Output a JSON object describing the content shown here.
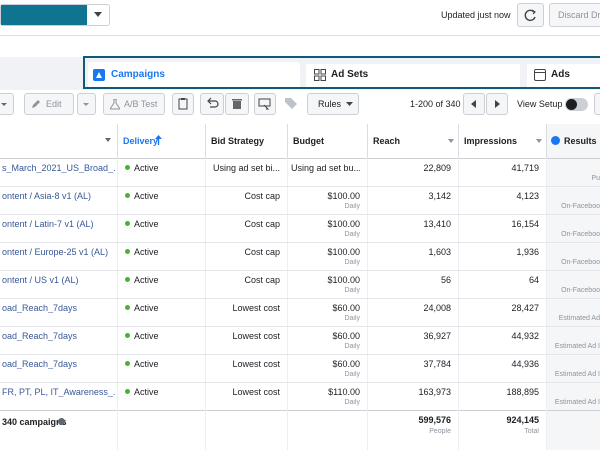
{
  "top_bar": {
    "status": "Updated just now",
    "discard": "Discard Dra"
  },
  "tabs": [
    "Campaigns",
    "Ad Sets",
    "Ads"
  ],
  "toolbar": {
    "edit": "Edit",
    "ab_test": "A/B Test",
    "rules": "Rules",
    "pagination": "1-200 of 340",
    "view_setup": "View Setup"
  },
  "table": {
    "headers": [
      "Delivery",
      "Bid Strategy",
      "Budget",
      "Reach",
      "Impressions",
      "Results"
    ],
    "rows": [
      {
        "name": "s_March_2021_US_Broad_...",
        "delivery": "Active",
        "bid_strategy": "Using ad set bi...",
        "budget": "Using ad set bu...",
        "reach": "22,809",
        "impressions": "41,719",
        "results": "Pu"
      },
      {
        "name": "ontent / Asia-8 v1 (AL)",
        "delivery": "Active",
        "bid_strategy": "Cost cap",
        "budget": "$100.00",
        "budget_period": "Daily",
        "reach": "3,142",
        "impressions": "4,123",
        "results": "On-Faceboo"
      },
      {
        "name": "ontent / Latin-7 v1 (AL)",
        "delivery": "Active",
        "bid_strategy": "Cost cap",
        "budget": "$100.00",
        "budget_period": "Daily",
        "reach": "13,410",
        "impressions": "16,154",
        "results": "On-Faceboo"
      },
      {
        "name": "ontent / Europe-25 v1 (AL)",
        "delivery": "Active",
        "bid_strategy": "Cost cap",
        "budget": "$100.00",
        "budget_period": "Daily",
        "reach": "1,603",
        "impressions": "1,936",
        "results": "On-Faceboo"
      },
      {
        "name": "ontent / US v1 (AL)",
        "delivery": "Active",
        "bid_strategy": "Cost cap",
        "budget": "$100.00",
        "budget_period": "Daily",
        "reach": "56",
        "impressions": "64",
        "results": "On-Faceboo"
      },
      {
        "name": "oad_Reach_7days",
        "delivery": "Active",
        "bid_strategy": "Lowest cost",
        "budget": "$60.00",
        "budget_period": "Daily",
        "reach": "24,008",
        "impressions": "28,427",
        "results": "Estimated Ad"
      },
      {
        "name": "oad_Reach_7days",
        "delivery": "Active",
        "bid_strategy": "Lowest cost",
        "budget": "$60.00",
        "budget_period": "Daily",
        "reach": "36,927",
        "impressions": "44,932",
        "results": "Estimated Ad I"
      },
      {
        "name": "oad_Reach_7days",
        "delivery": "Active",
        "bid_strategy": "Lowest cost",
        "budget": "$60.00",
        "budget_period": "Daily",
        "reach": "37,784",
        "impressions": "44,936",
        "results": "Estimated Ad I"
      },
      {
        "name": "FR, PT, PL, IT_Awareness_...",
        "delivery": "Active",
        "bid_strategy": "Lowest cost",
        "budget": "$110.00",
        "budget_period": "Daily",
        "reach": "163,973",
        "impressions": "188,895",
        "results": "Estimated Ad I"
      }
    ],
    "totals": {
      "label": "340 campaigns",
      "reach": "599,576",
      "reach_note": "People",
      "impressions": "924,145",
      "impressions_note": "Total"
    }
  }
}
